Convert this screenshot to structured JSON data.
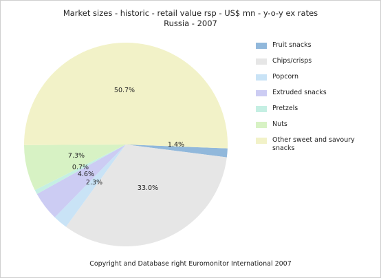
{
  "chart_data": {
    "type": "pie",
    "title_line1": "Market sizes - historic - retail value rsp - US$ mn - y-o-y ex rates",
    "title_line2": "Russia - 2007",
    "slices": [
      {
        "label": "Fruit snacks",
        "value": 1.4,
        "pct_label": "1.4%",
        "color": "#91b8db"
      },
      {
        "label": "Chips/crisps",
        "value": 33.0,
        "pct_label": "33.0%",
        "color": "#e6e6e6"
      },
      {
        "label": "Popcorn",
        "value": 2.3,
        "pct_label": "2.3%",
        "color": "#c9e3f6"
      },
      {
        "label": "Extruded snacks",
        "value": 4.6,
        "pct_label": "4.6%",
        "color": "#ccccf3"
      },
      {
        "label": "Pretzels",
        "value": 0.7,
        "pct_label": "0.7%",
        "color": "#c5efe3"
      },
      {
        "label": "Nuts",
        "value": 7.3,
        "pct_label": "7.3%",
        "color": "#d7f2c4"
      },
      {
        "label": "Other sweet and savoury snacks",
        "value": 50.7,
        "pct_label": "50.7%",
        "color": "#f2f2c8"
      }
    ]
  },
  "footer": "Copyright and Database right Euromonitor International 2007"
}
